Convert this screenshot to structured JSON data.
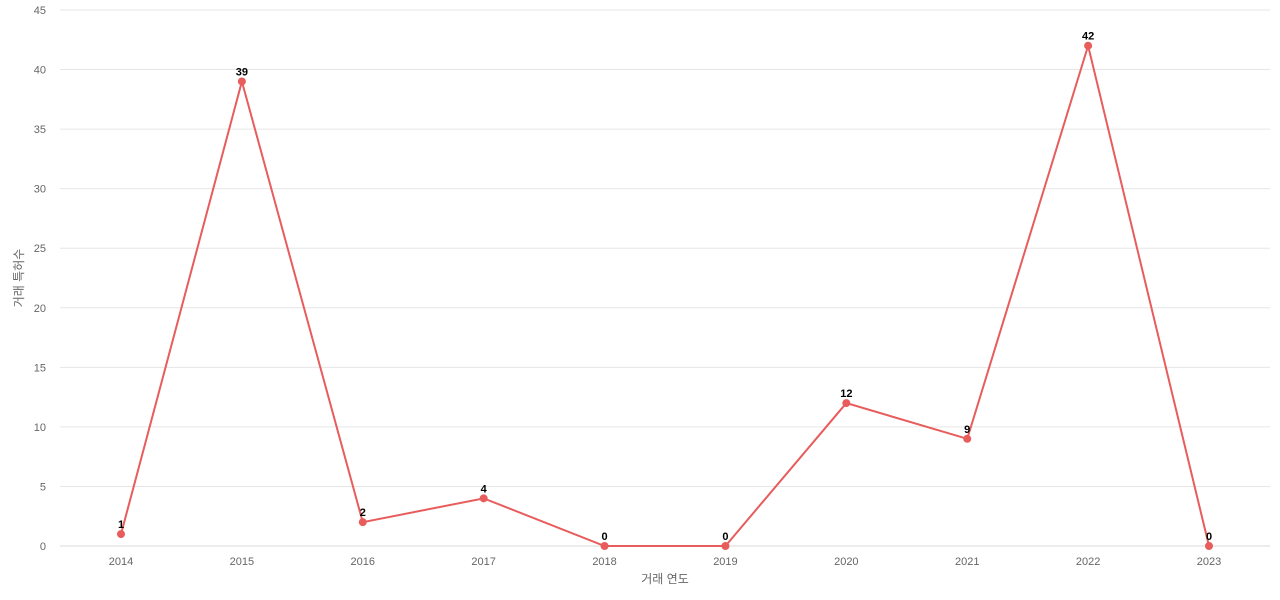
{
  "chart_data": {
    "type": "line",
    "xlabel": "거래 연도",
    "ylabel": "거래 특허수",
    "ylim": [
      0,
      45
    ],
    "yticks": [
      0,
      5,
      10,
      15,
      20,
      25,
      30,
      35,
      40,
      45
    ],
    "categories": [
      "2014",
      "2015",
      "2016",
      "2017",
      "2018",
      "2019",
      "2020",
      "2021",
      "2022",
      "2023"
    ],
    "values": [
      1,
      39,
      2,
      4,
      0,
      0,
      12,
      9,
      42,
      0
    ],
    "grid": true,
    "colors": {
      "line": "#e85c5c",
      "grid": "#e6e6e6"
    }
  }
}
